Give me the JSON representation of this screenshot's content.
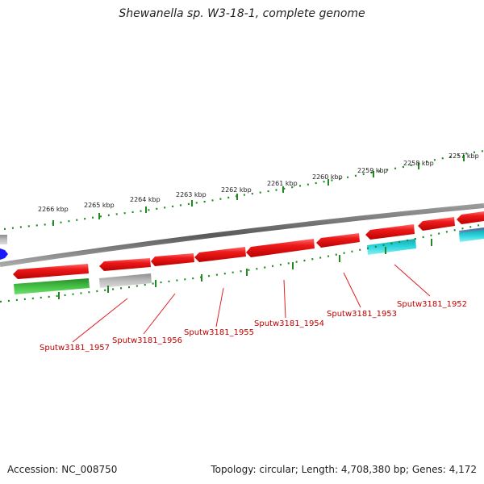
{
  "title": "Shewanella sp. W3-18-1, complete genome",
  "footer": {
    "accession": "Accession: NC_008750",
    "topology": "Topology: circular; Length: 4,708,380 bp; Genes: 4,172"
  },
  "scale_labels": [
    "2266 kbp",
    "2265 kbp",
    "2264 kbp",
    "2263 kbp",
    "2262 kbp",
    "2261 kbp",
    "2260 kbp",
    "2259 kbp",
    "2258 kbp",
    "2257 kbp"
  ],
  "gene_labels": [
    "Sputw3181_1957",
    "Sputw3181_1956",
    "Sputw3181_1955",
    "Sputw3181_1954",
    "Sputw3181_1953",
    "Sputw3181_1952"
  ],
  "colors": {
    "cds": "#e8141e",
    "rna_green": "#2db82d",
    "grey_feature": "#a9a9a9",
    "cyan_feature": "#20c8d0",
    "blue_feature": "#1a1aff",
    "backbone": "#7a7a7a",
    "ticks": "#1f8a1f",
    "label_text": "#c00000"
  }
}
